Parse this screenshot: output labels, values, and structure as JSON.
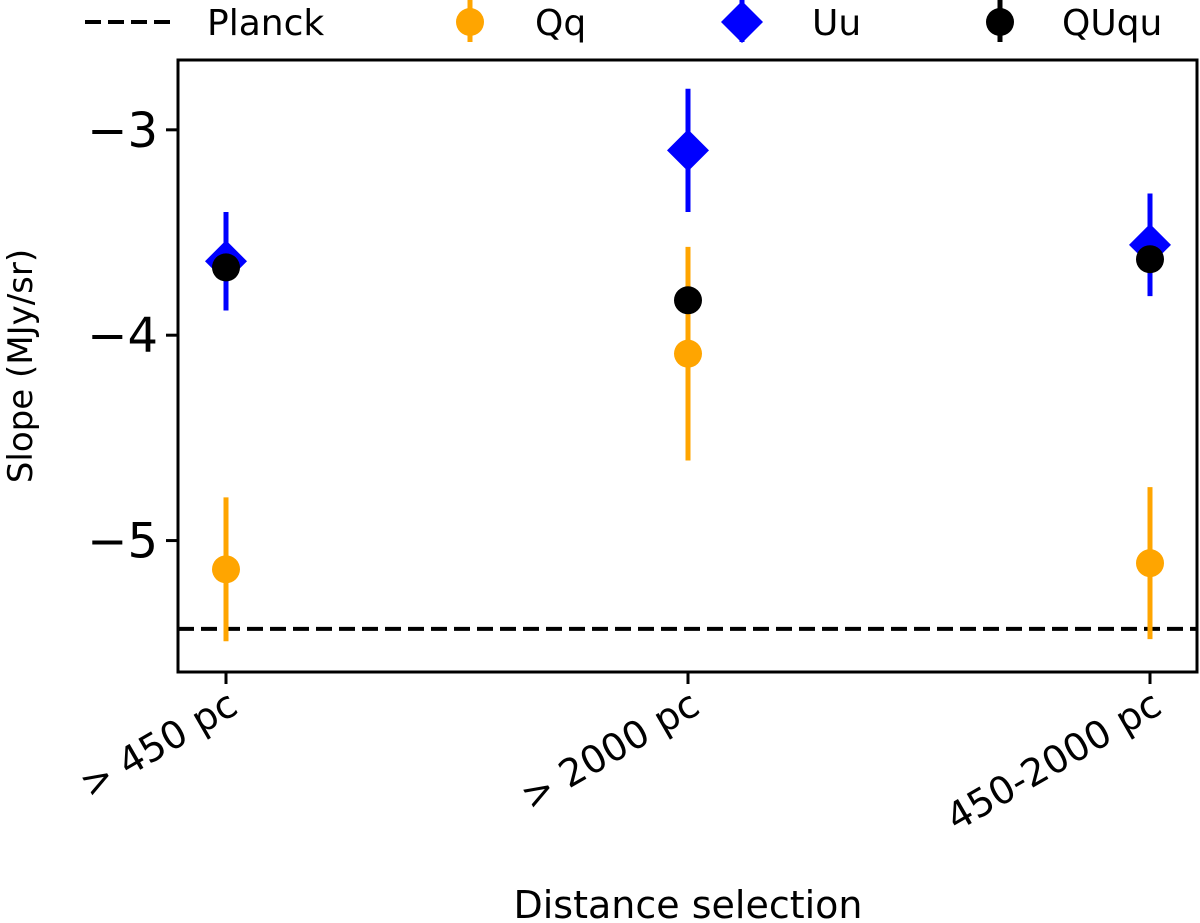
{
  "chart_data": {
    "type": "scatter",
    "title": "",
    "xlabel": "Distance selection",
    "ylabel": "Slope (MJy/sr)",
    "categories": [
      "> 450 pc",
      "> 2000 pc",
      "450-2000 pc"
    ],
    "ylim": [
      -5.64,
      -2.66
    ],
    "yticks": [
      -5,
      -4,
      -3
    ],
    "ytick_labels": [
      "−5",
      "−4",
      "−3"
    ],
    "grid": false,
    "legend_placement": "top (above plot)",
    "reference_lines": [
      {
        "name": "Planck",
        "y": -5.43,
        "style": "dashed",
        "color": "#000000"
      }
    ],
    "series": [
      {
        "name": "Qq",
        "marker": "circle",
        "color": "#ffa500",
        "values": [
          -5.14,
          -4.09,
          -5.11
        ],
        "errors": [
          0.35,
          0.52,
          0.37
        ]
      },
      {
        "name": "Uu",
        "marker": "diamond",
        "color": "#0000ff",
        "values": [
          -3.64,
          -3.1,
          -3.56
        ],
        "errors": [
          0.24,
          0.3,
          0.25
        ]
      },
      {
        "name": "QUqu",
        "marker": "circle",
        "color": "#000000",
        "values": [
          -3.67,
          -3.83,
          -3.63
        ],
        "errors": [
          0.05,
          0.05,
          0.05
        ]
      }
    ]
  }
}
